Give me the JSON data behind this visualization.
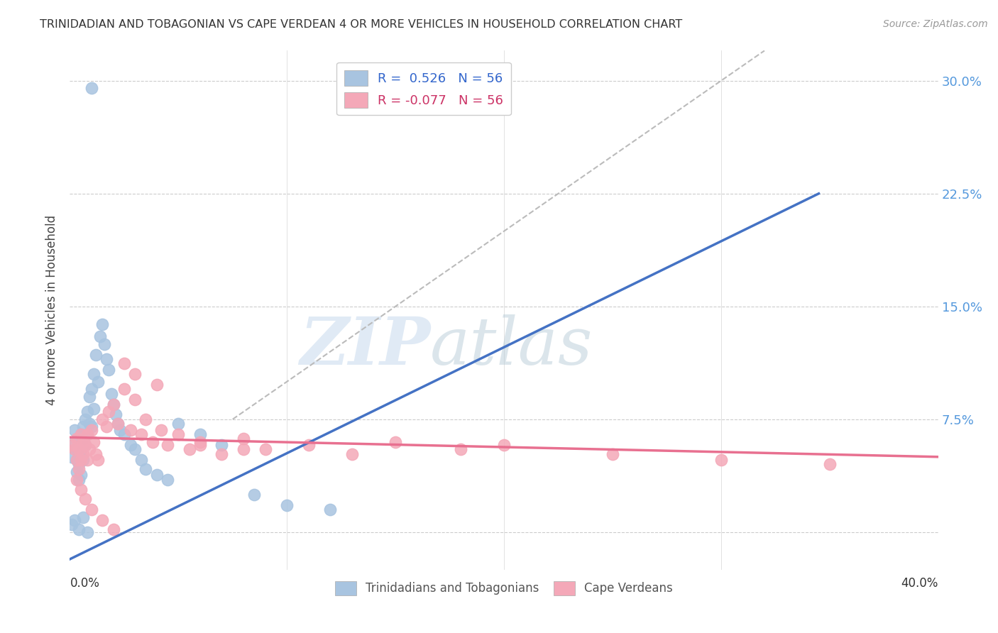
{
  "title": "TRINIDADIAN AND TOBAGONIAN VS CAPE VERDEAN 4 OR MORE VEHICLES IN HOUSEHOLD CORRELATION CHART",
  "source": "Source: ZipAtlas.com",
  "ylabel": "4 or more Vehicles in Household",
  "yticks": [
    0.0,
    0.075,
    0.15,
    0.225,
    0.3
  ],
  "ytick_labels": [
    "",
    "7.5%",
    "15.0%",
    "22.5%",
    "30.0%"
  ],
  "xlim": [
    0.0,
    0.4
  ],
  "ylim": [
    -0.025,
    0.32
  ],
  "legend_label1": "Trinidadians and Tobagonians",
  "legend_label2": "Cape Verdeans",
  "color_blue": "#a8c4e0",
  "color_pink": "#f4a8b8",
  "line_blue": "#4472c4",
  "line_pink": "#e87090",
  "line_diag_color": "#bbbbbb",
  "watermark_zip": "ZIP",
  "watermark_atlas": "atlas",
  "blue_scatter_x": [
    0.001,
    0.002,
    0.002,
    0.003,
    0.003,
    0.003,
    0.004,
    0.004,
    0.004,
    0.005,
    0.005,
    0.005,
    0.006,
    0.006,
    0.006,
    0.007,
    0.007,
    0.008,
    0.008,
    0.009,
    0.009,
    0.01,
    0.01,
    0.011,
    0.011,
    0.012,
    0.013,
    0.014,
    0.015,
    0.016,
    0.017,
    0.018,
    0.019,
    0.02,
    0.021,
    0.022,
    0.023,
    0.025,
    0.028,
    0.03,
    0.033,
    0.035,
    0.04,
    0.045,
    0.05,
    0.06,
    0.07,
    0.085,
    0.1,
    0.12,
    0.001,
    0.002,
    0.004,
    0.006,
    0.008,
    0.01
  ],
  "blue_scatter_y": [
    0.05,
    0.06,
    0.068,
    0.055,
    0.048,
    0.04,
    0.058,
    0.045,
    0.035,
    0.065,
    0.055,
    0.038,
    0.07,
    0.06,
    0.048,
    0.075,
    0.058,
    0.08,
    0.065,
    0.09,
    0.072,
    0.095,
    0.07,
    0.105,
    0.082,
    0.118,
    0.1,
    0.13,
    0.138,
    0.125,
    0.115,
    0.108,
    0.092,
    0.085,
    0.078,
    0.072,
    0.068,
    0.065,
    0.058,
    0.055,
    0.048,
    0.042,
    0.038,
    0.035,
    0.072,
    0.065,
    0.058,
    0.025,
    0.018,
    0.015,
    0.005,
    0.008,
    0.002,
    0.01,
    0.0,
    0.295
  ],
  "pink_scatter_x": [
    0.001,
    0.002,
    0.003,
    0.003,
    0.004,
    0.004,
    0.005,
    0.005,
    0.006,
    0.006,
    0.007,
    0.008,
    0.008,
    0.009,
    0.01,
    0.011,
    0.012,
    0.013,
    0.015,
    0.017,
    0.018,
    0.02,
    0.022,
    0.025,
    0.028,
    0.03,
    0.033,
    0.035,
    0.038,
    0.042,
    0.045,
    0.05,
    0.055,
    0.06,
    0.07,
    0.08,
    0.09,
    0.11,
    0.13,
    0.15,
    0.18,
    0.2,
    0.25,
    0.3,
    0.35,
    0.003,
    0.005,
    0.007,
    0.01,
    0.015,
    0.02,
    0.025,
    0.03,
    0.04,
    0.06,
    0.08
  ],
  "pink_scatter_y": [
    0.058,
    0.055,
    0.048,
    0.062,
    0.042,
    0.055,
    0.048,
    0.065,
    0.06,
    0.052,
    0.058,
    0.065,
    0.048,
    0.055,
    0.068,
    0.06,
    0.052,
    0.048,
    0.075,
    0.07,
    0.08,
    0.085,
    0.072,
    0.095,
    0.068,
    0.088,
    0.065,
    0.075,
    0.06,
    0.068,
    0.058,
    0.065,
    0.055,
    0.058,
    0.052,
    0.062,
    0.055,
    0.058,
    0.052,
    0.06,
    0.055,
    0.058,
    0.052,
    0.048,
    0.045,
    0.035,
    0.028,
    0.022,
    0.015,
    0.008,
    0.002,
    0.112,
    0.105,
    0.098,
    0.06,
    0.055
  ],
  "blue_line_x": [
    0.0,
    0.345
  ],
  "blue_line_y": [
    -0.018,
    0.225
  ],
  "pink_line_x": [
    0.0,
    0.4
  ],
  "pink_line_y": [
    0.063,
    0.05
  ],
  "diag_line_x": [
    0.075,
    0.32
  ],
  "diag_line_y": [
    0.075,
    0.32
  ]
}
